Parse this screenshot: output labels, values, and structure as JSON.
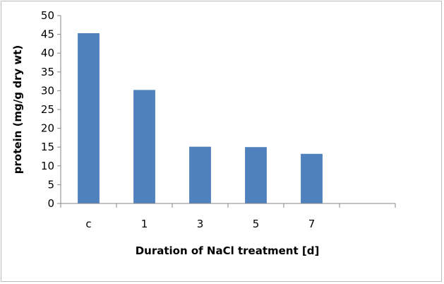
{
  "chart_data": {
    "type": "bar",
    "title": "",
    "xlabel": "Duration of NaCl treatment [d]",
    "ylabel": "protein (mg/g dry wt)",
    "categories": [
      "c",
      "1",
      "3",
      "5",
      "7",
      ""
    ],
    "values": [
      45.3,
      30.2,
      15.1,
      15.0,
      13.2,
      null
    ],
    "ylim": [
      0,
      50
    ],
    "yticks": [
      0,
      5,
      10,
      15,
      20,
      25,
      30,
      35,
      40,
      45,
      50
    ],
    "grid": false,
    "legend": "none",
    "bar_color": "#4f81bd"
  }
}
